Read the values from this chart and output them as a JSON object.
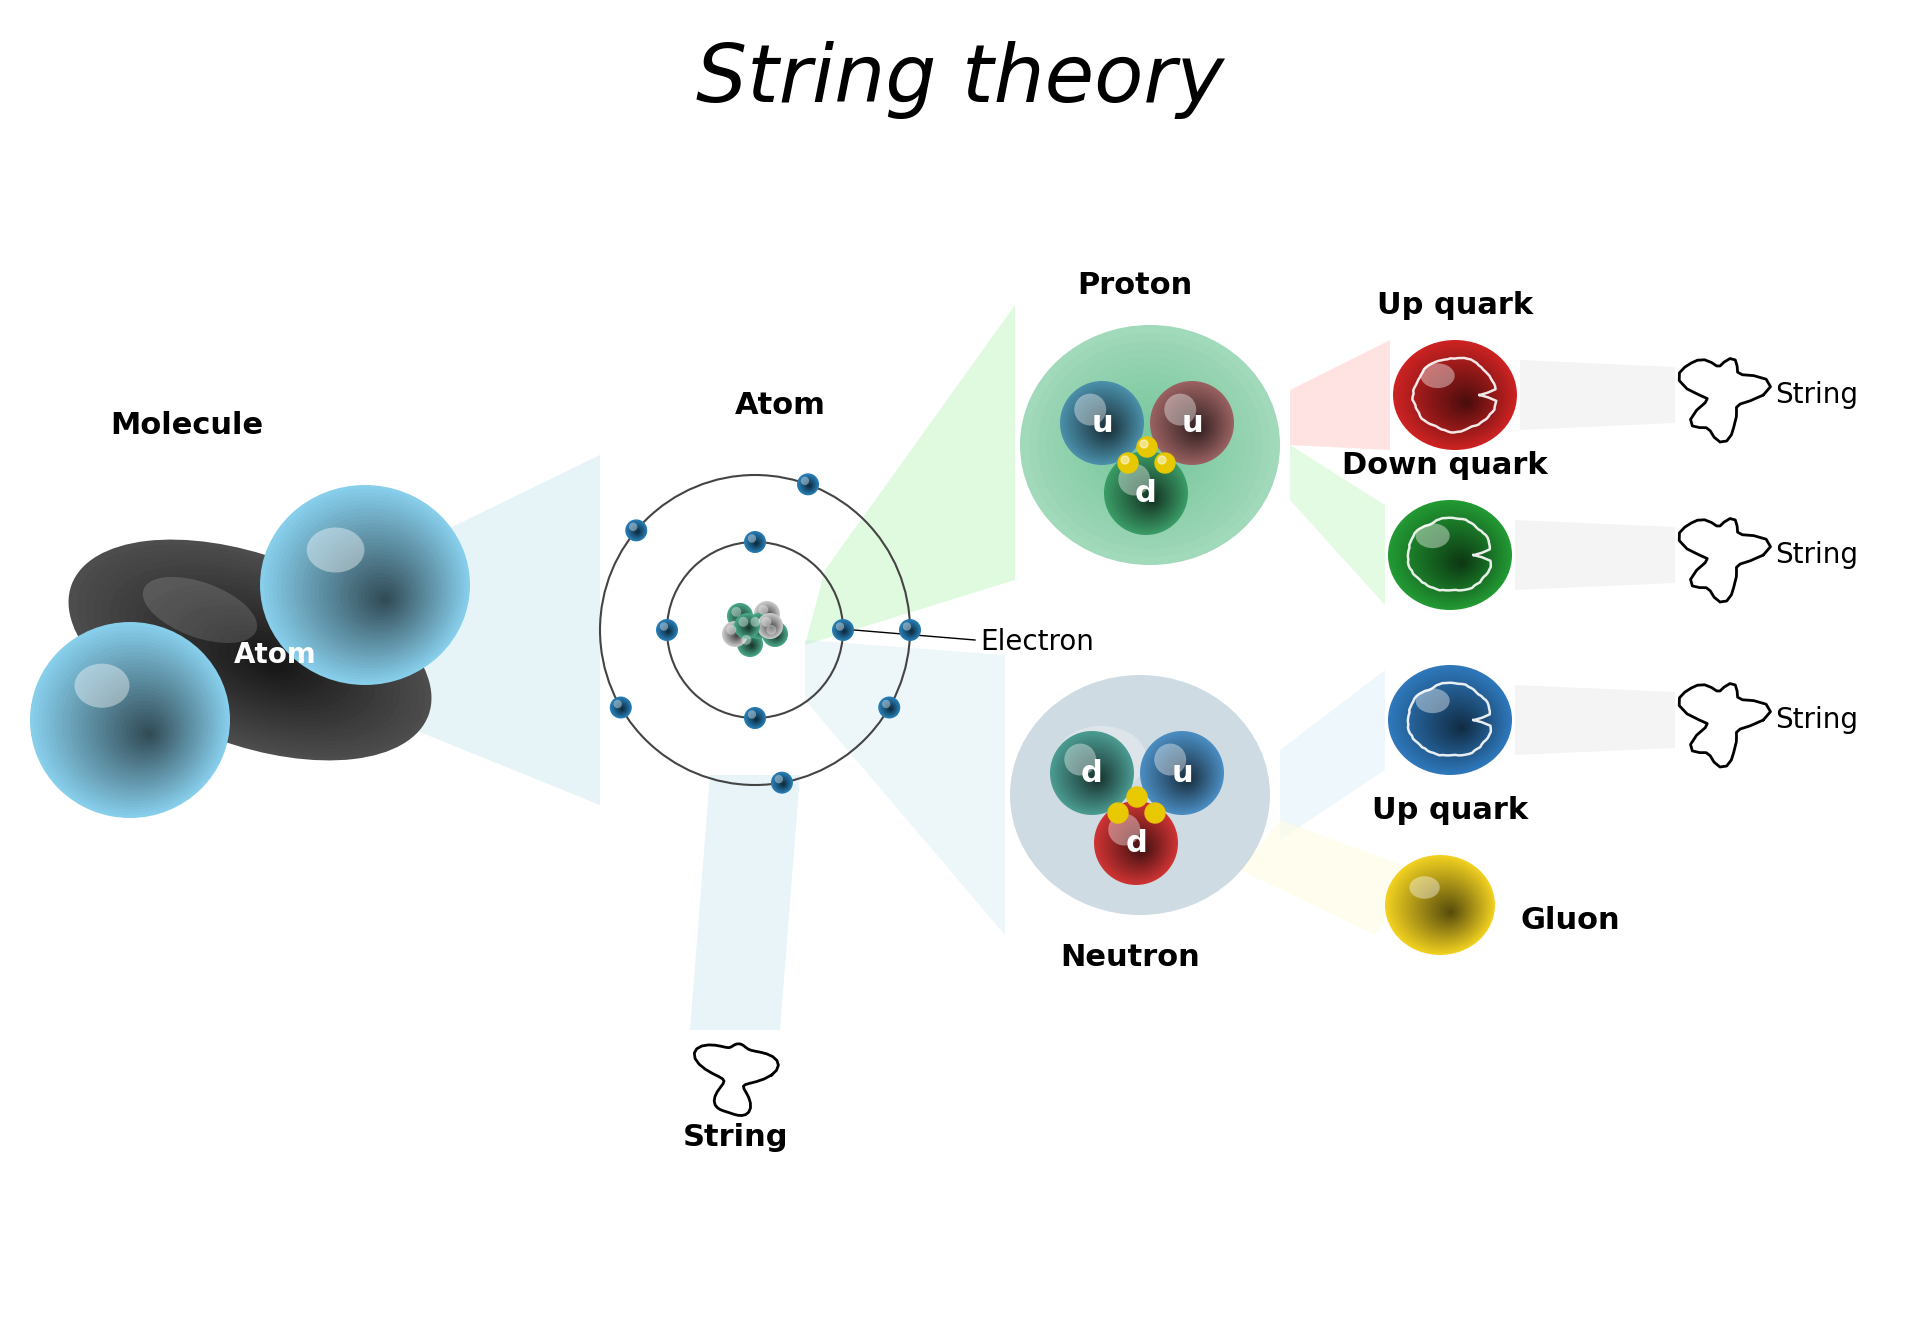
{
  "title": "String theory",
  "title_fontsize": 58,
  "bg_color": "#ffffff",
  "molecule_label": "Molecule",
  "atom_label_on_molecule": "Atom",
  "atom_diagram_label": "Atom",
  "electron_label": "Electron",
  "proton_label": "Proton",
  "neutron_label": "Neutron",
  "up_quark_label1": "Up quark",
  "down_quark_label": "Down quark",
  "up_quark_label2": "Up quark",
  "gluon_label": "Gluon",
  "string_label": "String",
  "label_fontsize": 22,
  "small_label_fontsize": 20,
  "quark_letter_fontsize": 22,
  "blue_sphere_color": "#87CEEB",
  "black_sphere_color": "#282828",
  "electron_color": "#2980B9",
  "proton_bg_color": "#5DBD8A",
  "neutron_bg_color": "#A8BECC",
  "quark_teal": "#4A9E96",
  "quark_reddish": "#A04040",
  "quark_red": "#CC2222",
  "quark_green": "#229933",
  "quark_blue": "#2E78BB",
  "gluon_yellow": "#F0D020",
  "yellow_gluon_dot": "#E8C800",
  "cone_blue": "#ADD8E6",
  "cone_green": "#90EE90",
  "cone_pink": "#FFB0B0",
  "cone_lightblue": "#C8E8F8",
  "cone_lightyellow": "#FFFFF0"
}
